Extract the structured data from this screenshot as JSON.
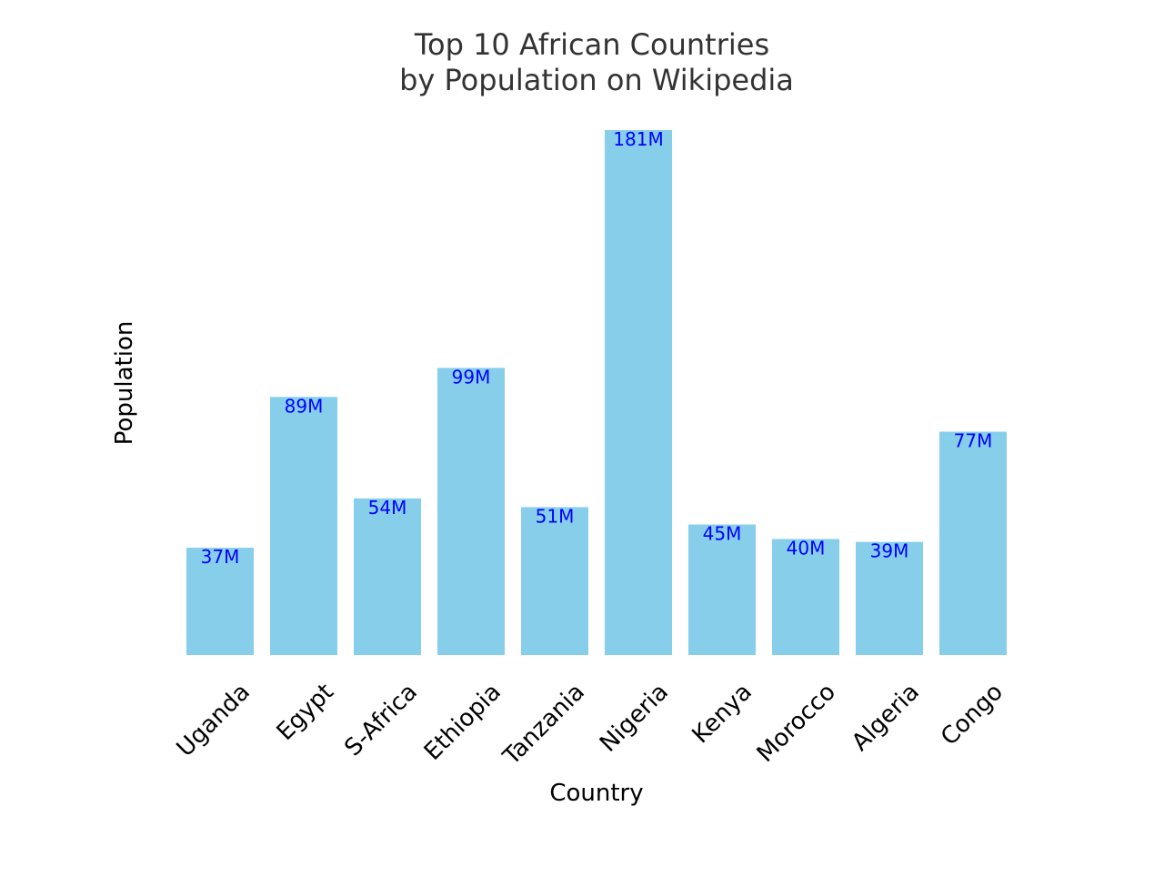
{
  "chart_data": {
    "type": "bar",
    "title_lines": [
      "Top 10 African Countries",
      "by Population on Wikipedia"
    ],
    "xlabel": "Country",
    "ylabel": "Population",
    "categories": [
      "Uganda",
      "Egypt",
      "S-Africa",
      "Ethiopia",
      "Tanzania",
      "Nigeria",
      "Kenya",
      "Morocco",
      "Algeria",
      "Congo"
    ],
    "values": [
      37,
      89,
      54,
      99,
      51,
      181,
      45,
      40,
      39,
      77
    ],
    "value_labels": [
      "37M",
      "89M",
      "54M",
      "99M",
      "51M",
      "181M",
      "45M",
      "40M",
      "39M",
      "77M"
    ],
    "units": "millions",
    "ylim": [
      0,
      181
    ],
    "grid": false,
    "axes_visible": false,
    "colors": {
      "bar": "#87ceeb",
      "data_label": "#0000ff",
      "title": "#333333",
      "text": "#000000"
    }
  }
}
